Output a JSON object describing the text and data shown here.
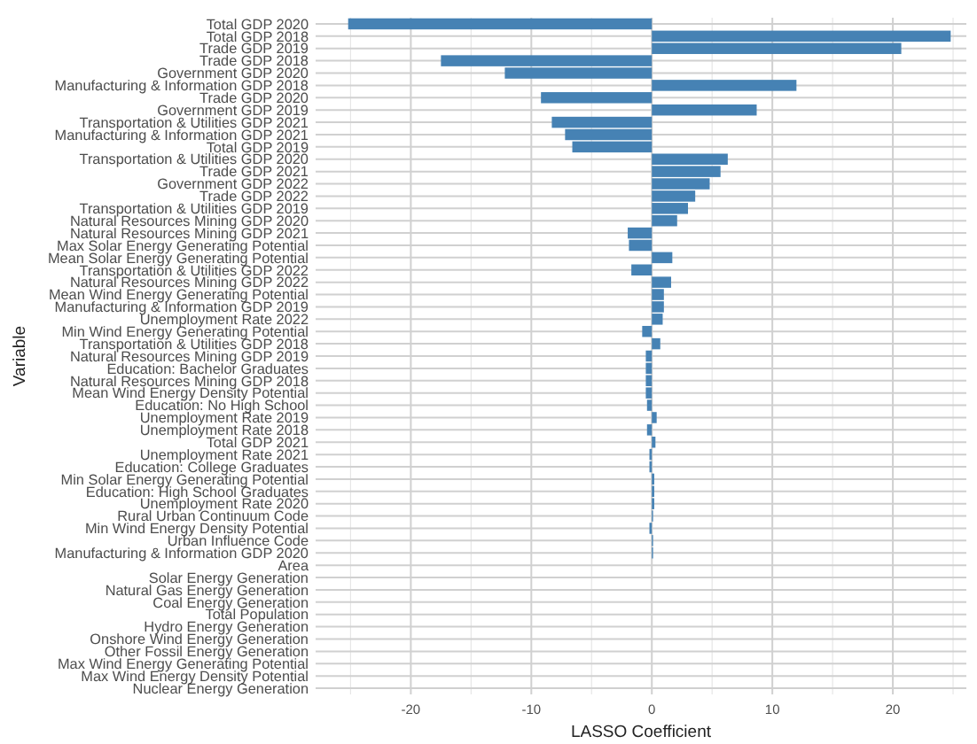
{
  "chart_data": {
    "type": "bar",
    "orientation": "horizontal",
    "xlabel": "LASSO Coefficient",
    "ylabel": "Variable",
    "color": "#4682b4",
    "grid": true,
    "categories": [
      "Total GDP 2020",
      "Total GDP 2018",
      "Trade GDP 2019",
      "Trade GDP 2018",
      "Government GDP 2020",
      "Manufacturing & Information GDP 2018",
      "Trade GDP 2020",
      "Government GDP 2019",
      "Transportation & Utilities GDP 2021",
      "Manufacturing & Information GDP 2021",
      "Total GDP 2019",
      "Transportation & Utilities GDP 2020",
      "Trade GDP 2021",
      "Government GDP 2022",
      "Trade GDP 2022",
      "Transportation & Utilities GDP 2019",
      "Natural Resources Mining GDP 2020",
      "Natural Resources Mining GDP 2021",
      "Max Solar Energy Generating Potential",
      "Mean Solar Energy Generating Potential",
      "Transportation & Utilities GDP 2022",
      "Natural Resources Mining GDP 2022",
      "Mean Wind Energy Generating Potential",
      "Manufacturing & Information GDP 2019",
      "Unemployment Rate 2022",
      "Min Wind Energy Generating Potential",
      "Transportation & Utilities GDP 2018",
      "Natural Resources Mining GDP 2019",
      "Education: Bachelor Graduates",
      "Natural Resources Mining GDP 2018",
      "Mean Wind Energy Density Potential",
      "Education: No High School",
      "Unemployment Rate 2019",
      "Unemployment Rate 2018",
      "Total GDP 2021",
      "Unemployment Rate 2021",
      "Education: College Graduates",
      "Min Solar Energy Generating Potential",
      "Education: High School Graduates",
      "Unemployment Rate 2020",
      "Rural Urban Continuum Code",
      "Min Wind Energy Density Potential",
      "Urban Influence Code",
      "Manufacturing & Information GDP 2020",
      "Area",
      "Solar Energy Generation",
      "Natural Gas Energy Generation",
      "Coal Energy Generation",
      "Total Population",
      "Hydro Energy Generation",
      "Onshore Wind Energy Generation",
      "Other Fossil Energy Generation",
      "Max Wind Energy Generating Potential",
      "Max Wind Energy Density Potential",
      "Nuclear Energy Generation"
    ],
    "values": [
      -25.2,
      24.8,
      20.7,
      -17.5,
      -12.2,
      12.0,
      -9.2,
      8.7,
      -8.3,
      -7.2,
      -6.6,
      6.3,
      5.7,
      4.8,
      3.6,
      3.0,
      2.1,
      -2.0,
      -1.9,
      1.7,
      -1.7,
      1.6,
      1.0,
      1.0,
      0.9,
      -0.8,
      0.7,
      -0.5,
      -0.5,
      -0.5,
      -0.5,
      -0.4,
      0.4,
      -0.4,
      0.3,
      -0.2,
      -0.2,
      0.2,
      0.2,
      0.2,
      0.1,
      -0.2,
      0.1,
      0.1,
      0,
      0,
      0,
      0,
      0,
      0,
      0,
      0,
      0,
      0,
      0
    ],
    "xlim": [
      -27.9,
      26.1
    ],
    "xticks": [
      {
        "value": -25,
        "label": null
      },
      -20,
      {
        "value": -15,
        "label": null
      },
      -10,
      {
        "value": -5,
        "label": null
      },
      0,
      {
        "value": 5,
        "label": null
      },
      10,
      {
        "value": 15,
        "label": null
      },
      20,
      {
        "value": 25,
        "label": null
      }
    ]
  }
}
